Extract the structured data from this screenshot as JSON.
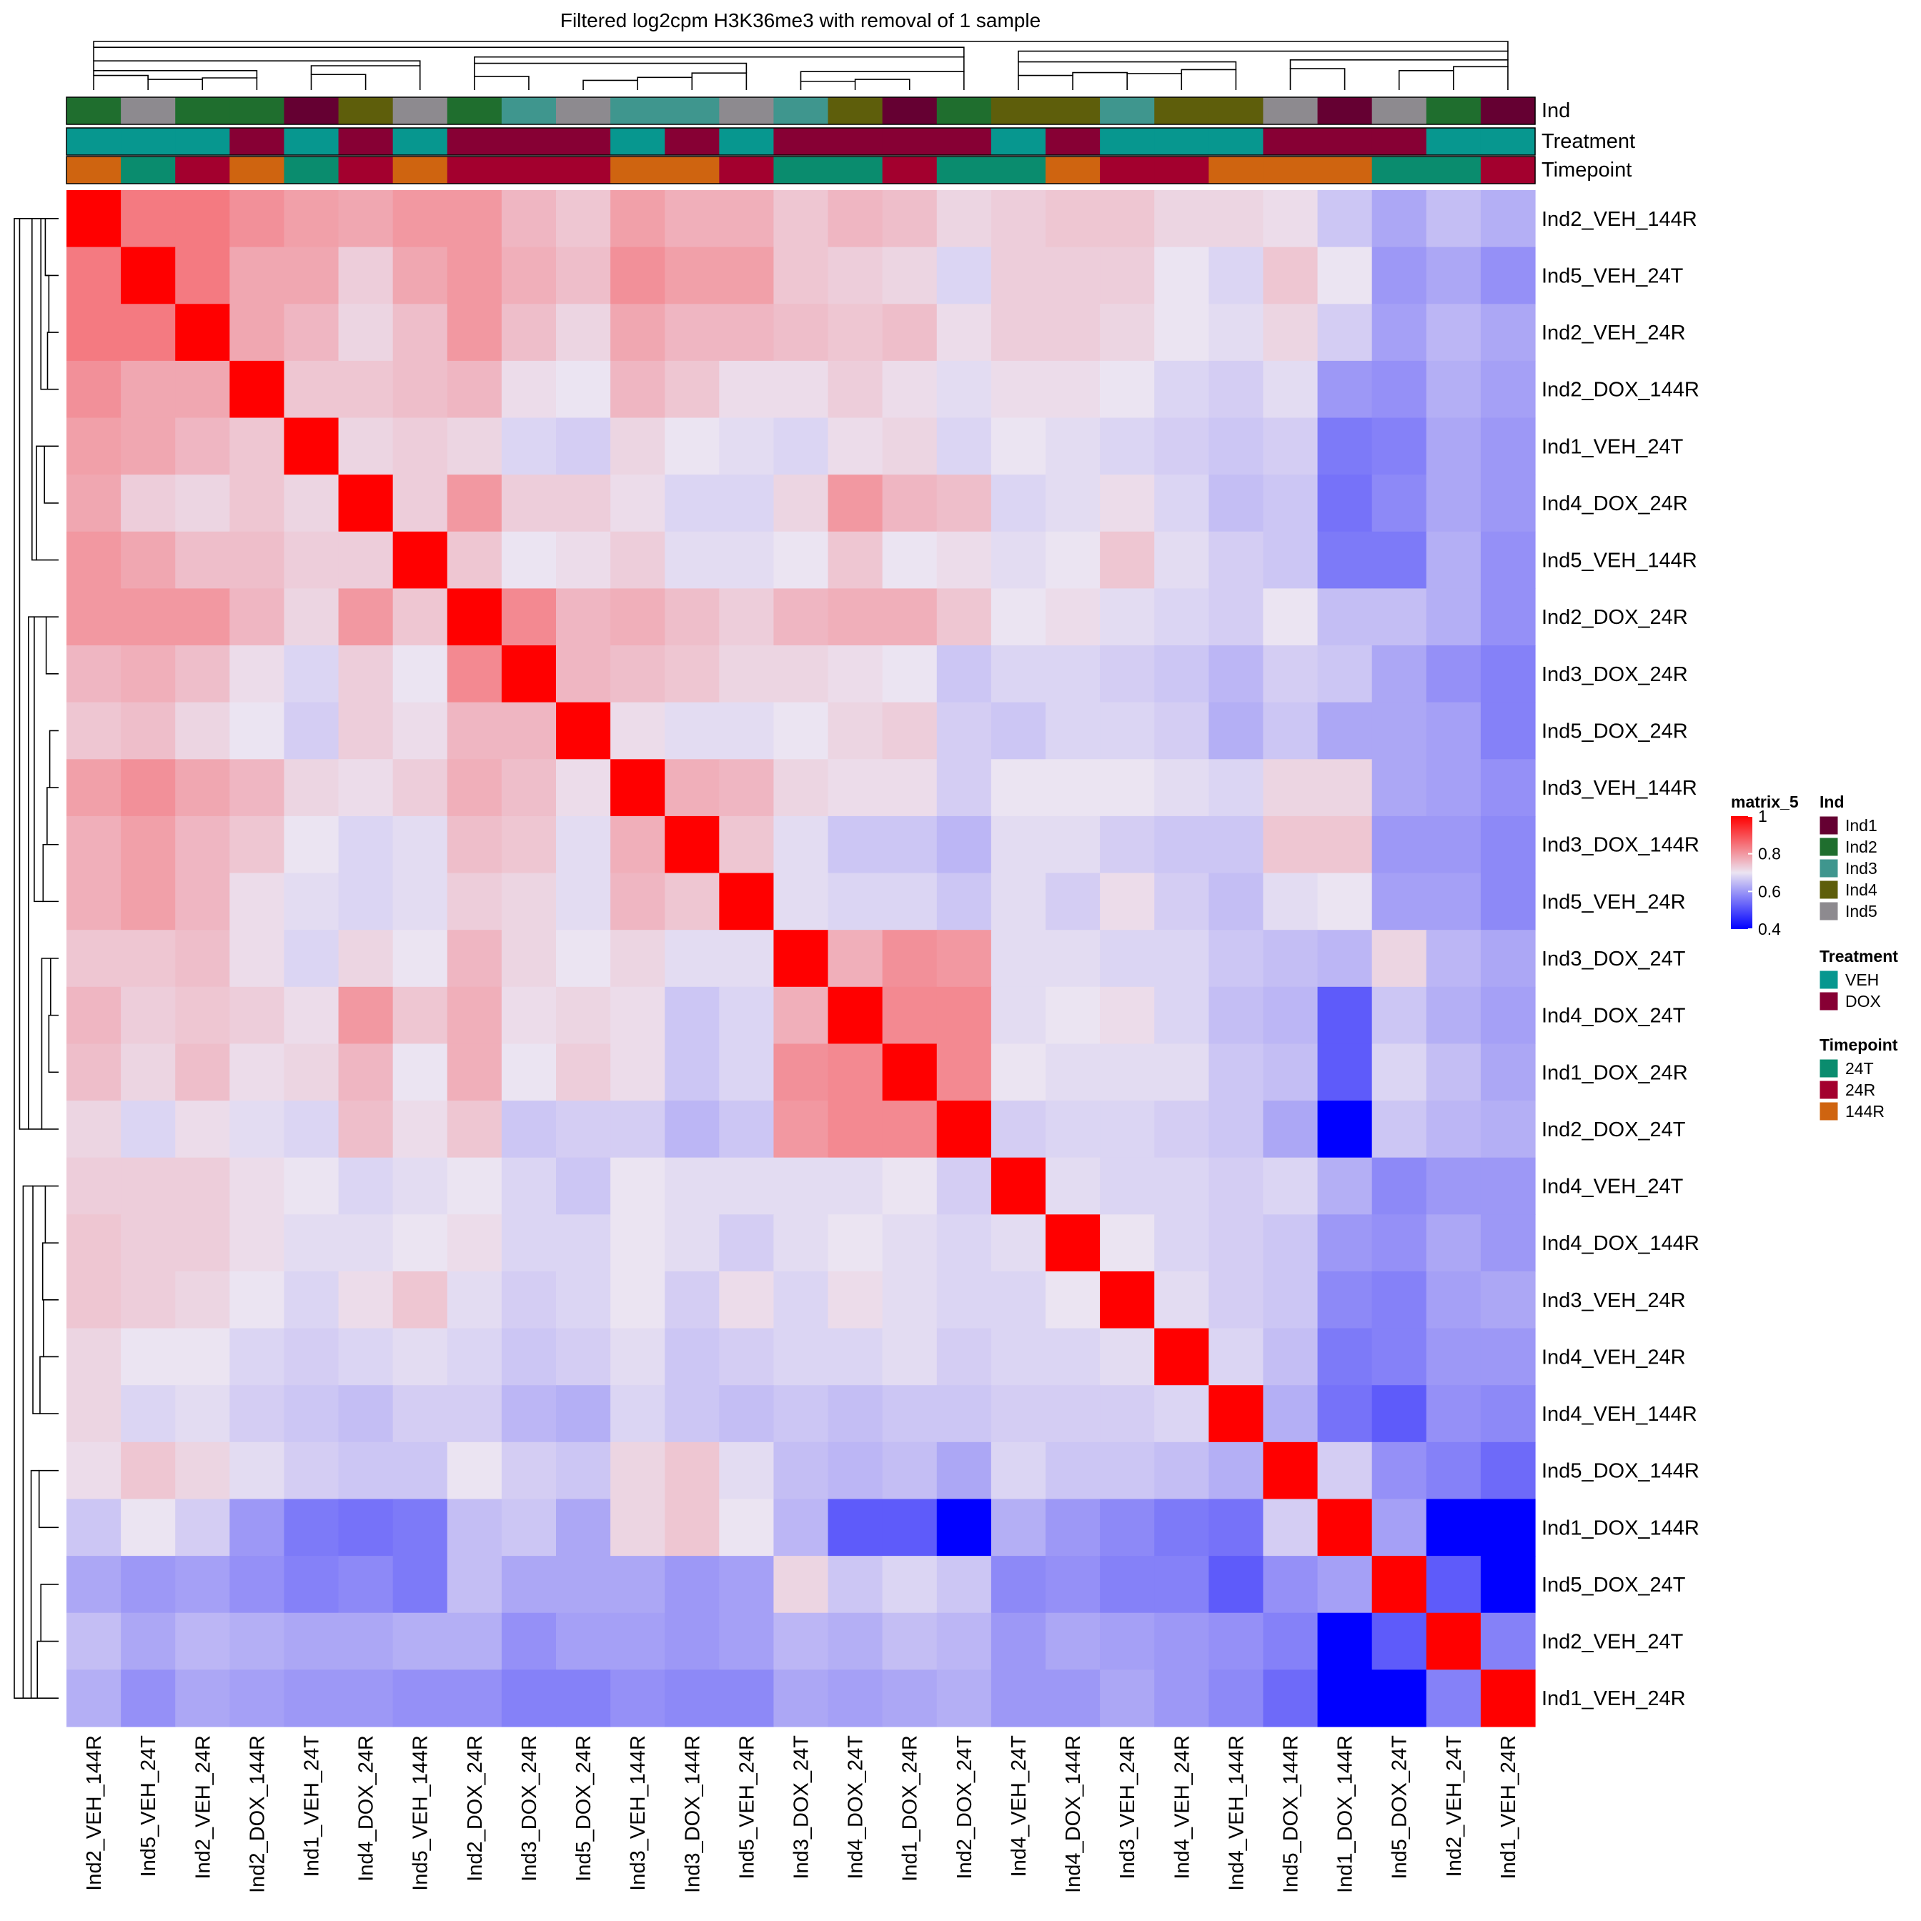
{
  "chart_data": {
    "type": "heatmap",
    "title": "Filtered log2cpm H3K36me3 with removal of 1 sample",
    "samples": [
      "Ind2_VEH_144R",
      "Ind5_VEH_24T",
      "Ind2_VEH_24R",
      "Ind2_DOX_144R",
      "Ind1_VEH_24T",
      "Ind4_DOX_24R",
      "Ind5_VEH_144R",
      "Ind2_DOX_24R",
      "Ind3_DOX_24R",
      "Ind5_DOX_24R",
      "Ind3_VEH_144R",
      "Ind3_DOX_144R",
      "Ind5_VEH_24R",
      "Ind3_DOX_24T",
      "Ind4_DOX_24T",
      "Ind1_DOX_24R",
      "Ind2_DOX_24T",
      "Ind4_VEH_24T",
      "Ind4_DOX_144R",
      "Ind3_VEH_24R",
      "Ind4_VEH_24R",
      "Ind4_VEH_144R",
      "Ind5_DOX_144R",
      "Ind1_DOX_144R",
      "Ind5_DOX_24T",
      "Ind2_VEH_24T",
      "Ind1_VEH_24R"
    ],
    "values": [
      [
        1.0,
        0.84,
        0.84,
        0.81,
        0.79,
        0.78,
        0.8,
        0.8,
        0.76,
        0.74,
        0.79,
        0.77,
        0.77,
        0.74,
        0.76,
        0.75,
        0.72,
        0.73,
        0.74,
        0.74,
        0.72,
        0.72,
        0.71,
        0.66,
        0.62,
        0.65,
        0.63
      ],
      [
        0.84,
        1.0,
        0.84,
        0.78,
        0.78,
        0.73,
        0.78,
        0.8,
        0.77,
        0.75,
        0.81,
        0.79,
        0.79,
        0.74,
        0.73,
        0.72,
        0.68,
        0.73,
        0.73,
        0.73,
        0.7,
        0.68,
        0.74,
        0.7,
        0.6,
        0.62,
        0.59
      ],
      [
        0.84,
        0.84,
        1.0,
        0.78,
        0.76,
        0.72,
        0.75,
        0.8,
        0.75,
        0.72,
        0.78,
        0.76,
        0.76,
        0.75,
        0.74,
        0.75,
        0.71,
        0.73,
        0.73,
        0.72,
        0.7,
        0.69,
        0.72,
        0.67,
        0.61,
        0.64,
        0.62
      ],
      [
        0.81,
        0.78,
        0.78,
        1.0,
        0.74,
        0.74,
        0.75,
        0.76,
        0.71,
        0.7,
        0.76,
        0.74,
        0.71,
        0.71,
        0.73,
        0.71,
        0.69,
        0.71,
        0.71,
        0.7,
        0.68,
        0.67,
        0.69,
        0.6,
        0.59,
        0.63,
        0.61
      ],
      [
        0.79,
        0.78,
        0.76,
        0.74,
        1.0,
        0.72,
        0.73,
        0.72,
        0.68,
        0.67,
        0.72,
        0.7,
        0.69,
        0.68,
        0.71,
        0.72,
        0.68,
        0.7,
        0.69,
        0.68,
        0.67,
        0.66,
        0.67,
        0.56,
        0.57,
        0.62,
        0.6
      ],
      [
        0.78,
        0.73,
        0.72,
        0.74,
        0.72,
        1.0,
        0.73,
        0.8,
        0.73,
        0.73,
        0.71,
        0.68,
        0.68,
        0.72,
        0.8,
        0.76,
        0.75,
        0.68,
        0.69,
        0.71,
        0.68,
        0.65,
        0.66,
        0.55,
        0.58,
        0.62,
        0.6
      ],
      [
        0.8,
        0.78,
        0.75,
        0.75,
        0.73,
        0.73,
        1.0,
        0.74,
        0.7,
        0.71,
        0.73,
        0.69,
        0.69,
        0.7,
        0.74,
        0.7,
        0.71,
        0.69,
        0.7,
        0.74,
        0.69,
        0.67,
        0.66,
        0.56,
        0.56,
        0.63,
        0.59
      ],
      [
        0.8,
        0.8,
        0.8,
        0.76,
        0.72,
        0.8,
        0.74,
        1.0,
        0.82,
        0.76,
        0.77,
        0.75,
        0.73,
        0.76,
        0.77,
        0.77,
        0.74,
        0.7,
        0.71,
        0.69,
        0.68,
        0.67,
        0.7,
        0.65,
        0.65,
        0.63,
        0.59
      ],
      [
        0.76,
        0.77,
        0.75,
        0.71,
        0.68,
        0.73,
        0.7,
        0.82,
        1.0,
        0.76,
        0.75,
        0.74,
        0.72,
        0.72,
        0.71,
        0.7,
        0.66,
        0.68,
        0.68,
        0.67,
        0.66,
        0.64,
        0.67,
        0.66,
        0.62,
        0.59,
        0.57
      ],
      [
        0.74,
        0.75,
        0.72,
        0.7,
        0.67,
        0.73,
        0.71,
        0.76,
        0.76,
        1.0,
        0.71,
        0.69,
        0.69,
        0.7,
        0.72,
        0.73,
        0.67,
        0.66,
        0.68,
        0.68,
        0.67,
        0.63,
        0.66,
        0.62,
        0.62,
        0.61,
        0.57
      ],
      [
        0.79,
        0.81,
        0.78,
        0.76,
        0.72,
        0.71,
        0.73,
        0.77,
        0.75,
        0.71,
        1.0,
        0.77,
        0.76,
        0.72,
        0.71,
        0.71,
        0.67,
        0.7,
        0.7,
        0.7,
        0.69,
        0.68,
        0.72,
        0.72,
        0.62,
        0.61,
        0.59
      ],
      [
        0.77,
        0.79,
        0.76,
        0.74,
        0.7,
        0.68,
        0.69,
        0.75,
        0.74,
        0.69,
        0.77,
        1.0,
        0.74,
        0.69,
        0.66,
        0.66,
        0.64,
        0.69,
        0.69,
        0.67,
        0.66,
        0.66,
        0.74,
        0.74,
        0.6,
        0.6,
        0.58
      ],
      [
        0.77,
        0.79,
        0.76,
        0.71,
        0.69,
        0.68,
        0.69,
        0.73,
        0.72,
        0.69,
        0.76,
        0.74,
        1.0,
        0.69,
        0.68,
        0.68,
        0.66,
        0.69,
        0.67,
        0.71,
        0.67,
        0.65,
        0.69,
        0.7,
        0.61,
        0.61,
        0.58
      ],
      [
        0.74,
        0.74,
        0.75,
        0.71,
        0.68,
        0.72,
        0.7,
        0.76,
        0.72,
        0.7,
        0.72,
        0.69,
        0.69,
        1.0,
        0.77,
        0.81,
        0.8,
        0.69,
        0.69,
        0.68,
        0.68,
        0.66,
        0.65,
        0.64,
        0.72,
        0.64,
        0.62
      ],
      [
        0.76,
        0.73,
        0.74,
        0.73,
        0.71,
        0.8,
        0.74,
        0.77,
        0.71,
        0.72,
        0.71,
        0.66,
        0.68,
        0.77,
        1.0,
        0.82,
        0.82,
        0.69,
        0.7,
        0.71,
        0.68,
        0.65,
        0.64,
        0.52,
        0.66,
        0.63,
        0.61
      ],
      [
        0.75,
        0.72,
        0.75,
        0.71,
        0.72,
        0.76,
        0.7,
        0.77,
        0.7,
        0.73,
        0.71,
        0.66,
        0.68,
        0.81,
        0.82,
        1.0,
        0.82,
        0.7,
        0.69,
        0.69,
        0.69,
        0.66,
        0.65,
        0.52,
        0.68,
        0.65,
        0.62
      ],
      [
        0.72,
        0.68,
        0.71,
        0.69,
        0.68,
        0.75,
        0.71,
        0.74,
        0.66,
        0.67,
        0.67,
        0.64,
        0.66,
        0.8,
        0.82,
        0.82,
        1.0,
        0.67,
        0.68,
        0.68,
        0.67,
        0.66,
        0.62,
        0.4,
        0.66,
        0.64,
        0.63
      ],
      [
        0.73,
        0.73,
        0.73,
        0.71,
        0.7,
        0.68,
        0.69,
        0.7,
        0.68,
        0.66,
        0.7,
        0.69,
        0.69,
        0.69,
        0.69,
        0.7,
        0.67,
        1.0,
        0.69,
        0.68,
        0.68,
        0.67,
        0.68,
        0.63,
        0.58,
        0.6,
        0.6
      ],
      [
        0.74,
        0.73,
        0.73,
        0.71,
        0.69,
        0.69,
        0.7,
        0.71,
        0.68,
        0.68,
        0.7,
        0.69,
        0.67,
        0.69,
        0.7,
        0.69,
        0.68,
        0.69,
        1.0,
        0.7,
        0.68,
        0.67,
        0.66,
        0.6,
        0.59,
        0.62,
        0.6
      ],
      [
        0.74,
        0.73,
        0.72,
        0.7,
        0.68,
        0.71,
        0.74,
        0.69,
        0.67,
        0.68,
        0.7,
        0.67,
        0.71,
        0.68,
        0.71,
        0.69,
        0.68,
        0.68,
        0.7,
        1.0,
        0.69,
        0.67,
        0.66,
        0.58,
        0.57,
        0.61,
        0.62
      ],
      [
        0.72,
        0.7,
        0.7,
        0.68,
        0.67,
        0.68,
        0.69,
        0.68,
        0.66,
        0.67,
        0.69,
        0.66,
        0.67,
        0.68,
        0.68,
        0.69,
        0.67,
        0.68,
        0.68,
        0.69,
        1.0,
        0.68,
        0.65,
        0.56,
        0.57,
        0.6,
        0.6
      ],
      [
        0.72,
        0.68,
        0.69,
        0.67,
        0.66,
        0.65,
        0.67,
        0.67,
        0.64,
        0.63,
        0.68,
        0.66,
        0.65,
        0.66,
        0.65,
        0.66,
        0.66,
        0.67,
        0.67,
        0.67,
        0.68,
        1.0,
        0.63,
        0.55,
        0.52,
        0.59,
        0.58
      ],
      [
        0.71,
        0.74,
        0.72,
        0.69,
        0.67,
        0.66,
        0.66,
        0.7,
        0.67,
        0.66,
        0.72,
        0.74,
        0.69,
        0.65,
        0.64,
        0.65,
        0.62,
        0.68,
        0.66,
        0.66,
        0.65,
        0.63,
        1.0,
        0.67,
        0.59,
        0.57,
        0.54
      ],
      [
        0.66,
        0.7,
        0.67,
        0.6,
        0.56,
        0.55,
        0.56,
        0.65,
        0.66,
        0.62,
        0.72,
        0.74,
        0.7,
        0.64,
        0.52,
        0.52,
        0.4,
        0.63,
        0.6,
        0.58,
        0.56,
        0.55,
        0.67,
        1.0,
        0.61,
        0.4,
        0.4
      ],
      [
        0.62,
        0.6,
        0.61,
        0.59,
        0.57,
        0.58,
        0.56,
        0.65,
        0.62,
        0.62,
        0.62,
        0.6,
        0.61,
        0.72,
        0.66,
        0.68,
        0.66,
        0.58,
        0.59,
        0.57,
        0.57,
        0.52,
        0.59,
        0.61,
        1.0,
        0.52,
        0.4
      ],
      [
        0.65,
        0.62,
        0.64,
        0.63,
        0.62,
        0.62,
        0.63,
        0.63,
        0.59,
        0.61,
        0.61,
        0.6,
        0.61,
        0.64,
        0.63,
        0.65,
        0.64,
        0.6,
        0.62,
        0.61,
        0.6,
        0.59,
        0.57,
        0.4,
        0.52,
        1.0,
        0.57
      ],
      [
        0.63,
        0.59,
        0.62,
        0.61,
        0.6,
        0.6,
        0.59,
        0.59,
        0.57,
        0.57,
        0.59,
        0.58,
        0.58,
        0.62,
        0.61,
        0.62,
        0.63,
        0.6,
        0.6,
        0.62,
        0.6,
        0.58,
        0.54,
        0.4,
        0.4,
        0.57,
        1.0
      ]
    ],
    "column_annotations": {
      "Ind": [
        "Ind2",
        "Ind5",
        "Ind2",
        "Ind2",
        "Ind1",
        "Ind4",
        "Ind5",
        "Ind2",
        "Ind3",
        "Ind5",
        "Ind3",
        "Ind3",
        "Ind5",
        "Ind3",
        "Ind4",
        "Ind1",
        "Ind2",
        "Ind4",
        "Ind4",
        "Ind3",
        "Ind4",
        "Ind4",
        "Ind5",
        "Ind1",
        "Ind5",
        "Ind2",
        "Ind1"
      ],
      "Treatment": [
        "VEH",
        "VEH",
        "VEH",
        "DOX",
        "VEH",
        "DOX",
        "VEH",
        "DOX",
        "DOX",
        "DOX",
        "VEH",
        "DOX",
        "VEH",
        "DOX",
        "DOX",
        "DOX",
        "DOX",
        "VEH",
        "DOX",
        "VEH",
        "VEH",
        "VEH",
        "DOX",
        "DOX",
        "DOX",
        "VEH",
        "VEH"
      ],
      "Timepoint": [
        "144R",
        "24T",
        "24R",
        "144R",
        "24T",
        "24R",
        "144R",
        "24R",
        "24R",
        "24R",
        "144R",
        "144R",
        "24R",
        "24T",
        "24T",
        "24R",
        "24T",
        "24T",
        "144R",
        "24R",
        "24R",
        "144R",
        "144R",
        "144R",
        "24T",
        "24T",
        "24R"
      ]
    },
    "annotation_names": [
      "Ind",
      "Treatment",
      "Timepoint"
    ],
    "color_scale": {
      "title": "matrix_5",
      "stops": [
        {
          "value": 0.4,
          "color": "#0000ff"
        },
        {
          "value": 0.7,
          "color": "#ebe4f2"
        },
        {
          "value": 1.0,
          "color": "#ff0000"
        }
      ],
      "ticks": [
        "1",
        "0.8",
        "0.6",
        "0.4"
      ],
      "tick_values": [
        1.0,
        0.8,
        0.6,
        0.4
      ]
    },
    "legends": [
      {
        "title": "Ind",
        "items": [
          {
            "label": "Ind1",
            "color": "#650032"
          },
          {
            "label": "Ind2",
            "color": "#1f6e2e"
          },
          {
            "label": "Ind3",
            "color": "#3f968e"
          },
          {
            "label": "Ind4",
            "color": "#5e5e0b"
          },
          {
            "label": "Ind5",
            "color": "#8d8a8f"
          }
        ]
      },
      {
        "title": "Treatment",
        "items": [
          {
            "label": "VEH",
            "color": "#07978f"
          },
          {
            "label": "DOX",
            "color": "#870034"
          }
        ]
      },
      {
        "title": "Timepoint",
        "items": [
          {
            "label": "24T",
            "color": "#0a8c6e"
          },
          {
            "label": "24R",
            "color": "#a3002e"
          },
          {
            "label": "144R",
            "color": "#cf6410"
          }
        ]
      }
    ],
    "dendrogram": "hierarchical clustering on rows and columns"
  }
}
